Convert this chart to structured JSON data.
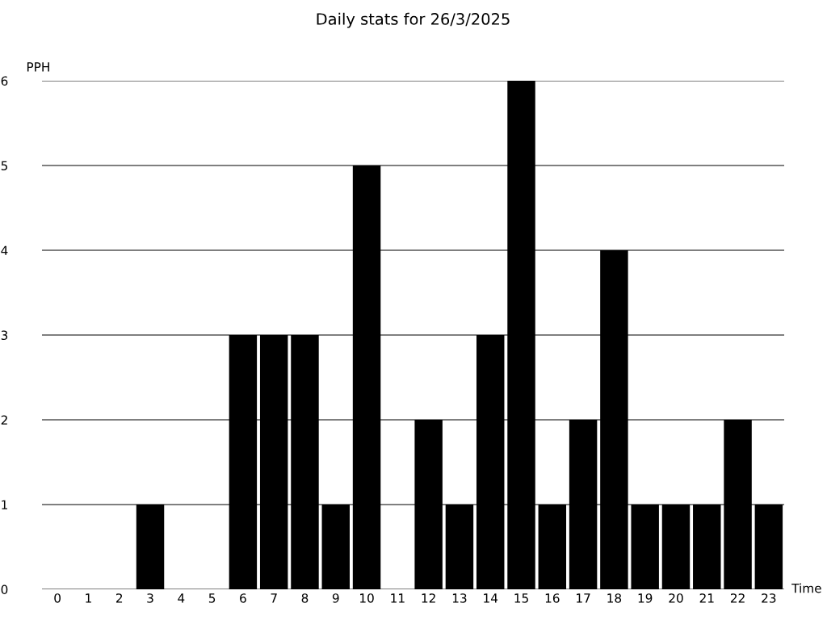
{
  "chart_data": {
    "type": "bar",
    "title": "Daily stats for 26/3/2025",
    "xlabel": "Time",
    "ylabel": "PPH",
    "categories": [
      "0",
      "1",
      "2",
      "3",
      "4",
      "5",
      "6",
      "7",
      "8",
      "9",
      "10",
      "11",
      "12",
      "13",
      "14",
      "15",
      "16",
      "17",
      "18",
      "19",
      "20",
      "21",
      "22",
      "23"
    ],
    "values": [
      0,
      0,
      0,
      1,
      0,
      0,
      3,
      3,
      3,
      1,
      5,
      0,
      2,
      1,
      3,
      6,
      1,
      2,
      4,
      1,
      1,
      1,
      2,
      1
    ],
    "color": "#000000",
    "ylim": [
      0,
      6
    ],
    "yticks": [
      0,
      1,
      2,
      3,
      4,
      5,
      6
    ],
    "grid": "y",
    "legend": false
  }
}
